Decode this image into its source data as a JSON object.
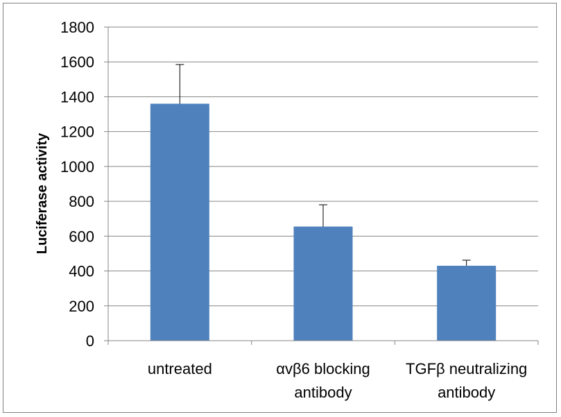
{
  "chart_data": {
    "type": "bar",
    "title": "",
    "xlabel": "",
    "ylabel": "Luciferase activity",
    "ylim": [
      0,
      1800
    ],
    "yticks": [
      0,
      200,
      400,
      600,
      800,
      1000,
      1200,
      1400,
      1600,
      1800
    ],
    "grid": true,
    "legend": "none",
    "categories": [
      [
        "untreated"
      ],
      [
        "αvβ6 blocking",
        "antibody"
      ],
      [
        "TGFβ neutralizing",
        "antibody"
      ]
    ],
    "values": [
      1360,
      655,
      430
    ],
    "error_upper": [
      1585,
      780,
      462
    ],
    "colors": {
      "bar": "#4f81bd",
      "grid": "#868686",
      "axis": "#868686",
      "error_bar": "#000000"
    }
  }
}
